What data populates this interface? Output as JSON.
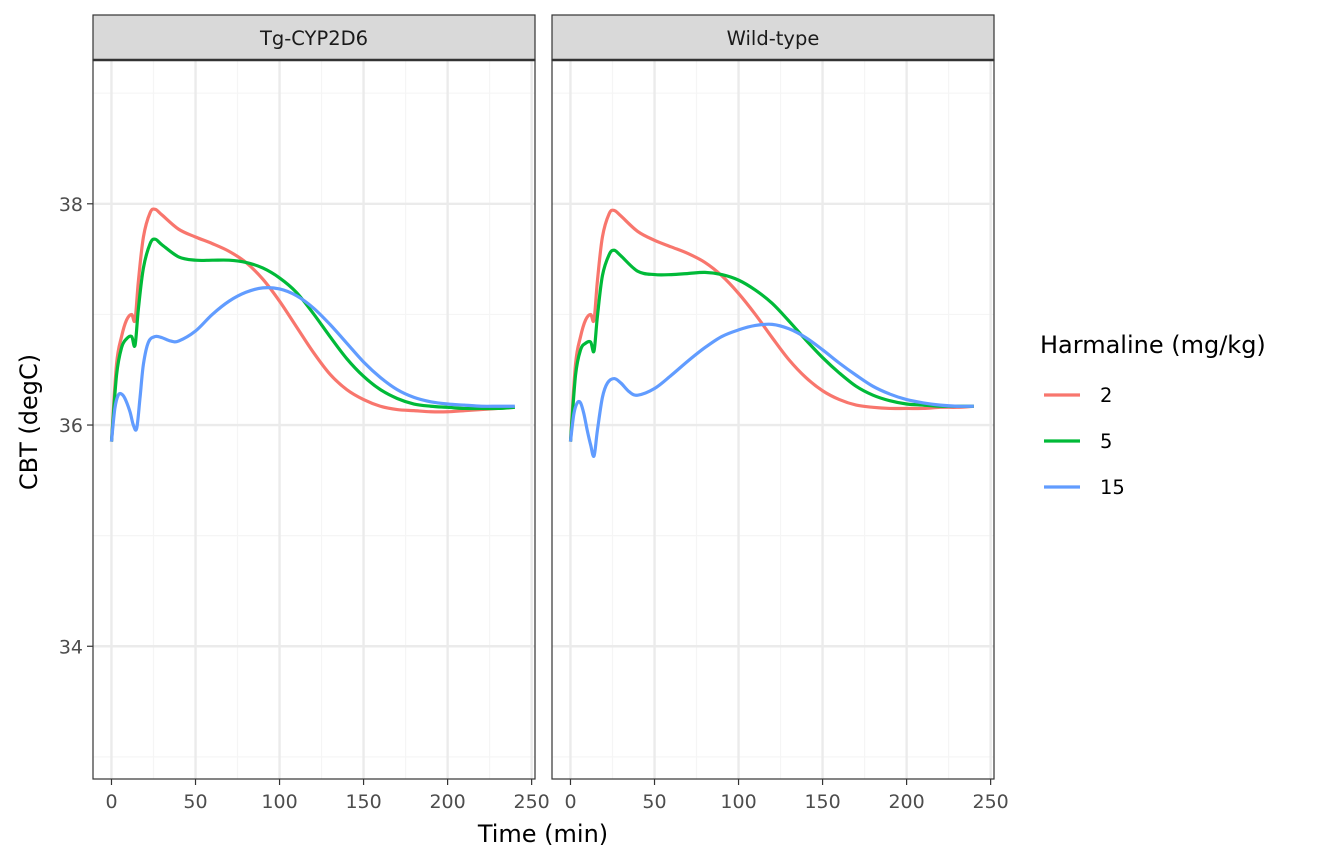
{
  "chart_data": {
    "type": "line",
    "xlabel": "Time (min)",
    "ylabel": "CBT (degC)",
    "xlim": [
      -11,
      252
    ],
    "ylim": [
      32.8,
      39.3
    ],
    "x_ticks": [
      0,
      50,
      100,
      150,
      200,
      250
    ],
    "y_ticks": [
      34,
      36,
      38
    ],
    "grid": true,
    "legend": {
      "title": "Harmaline (mg/kg)",
      "placement": "right",
      "entries": [
        {
          "label": "2",
          "color": "#F8766D"
        },
        {
          "label": "5",
          "color": "#00BA38"
        },
        {
          "label": "15",
          "color": "#619CFF"
        }
      ]
    },
    "facets": [
      {
        "label": "Tg-CYP2D6",
        "series": [
          {
            "name": "2",
            "color": "#F8766D",
            "points": [
              [
                0,
                35.85
              ],
              [
                3,
                36.55
              ],
              [
                6,
                36.8
              ],
              [
                9,
                36.95
              ],
              [
                12,
                37.0
              ],
              [
                14,
                36.95
              ],
              [
                16,
                37.3
              ],
              [
                19,
                37.7
              ],
              [
                23,
                37.92
              ],
              [
                26,
                37.95
              ],
              [
                30,
                37.9
              ],
              [
                40,
                37.77
              ],
              [
                50,
                37.7
              ],
              [
                60,
                37.64
              ],
              [
                70,
                37.57
              ],
              [
                80,
                37.47
              ],
              [
                90,
                37.32
              ],
              [
                100,
                37.12
              ],
              [
                110,
                36.89
              ],
              [
                120,
                36.66
              ],
              [
                130,
                36.46
              ],
              [
                140,
                36.32
              ],
              [
                150,
                36.23
              ],
              [
                160,
                36.17
              ],
              [
                170,
                36.14
              ],
              [
                180,
                36.13
              ],
              [
                190,
                36.12
              ],
              [
                200,
                36.12
              ],
              [
                210,
                36.13
              ],
              [
                220,
                36.14
              ],
              [
                230,
                36.15
              ],
              [
                240,
                36.16
              ]
            ]
          },
          {
            "name": "5",
            "color": "#00BA38",
            "points": [
              [
                0,
                35.85
              ],
              [
                3,
                36.45
              ],
              [
                6,
                36.7
              ],
              [
                9,
                36.78
              ],
              [
                12,
                36.8
              ],
              [
                14,
                36.72
              ],
              [
                16,
                37.05
              ],
              [
                19,
                37.42
              ],
              [
                23,
                37.64
              ],
              [
                26,
                37.68
              ],
              [
                30,
                37.63
              ],
              [
                40,
                37.52
              ],
              [
                50,
                37.49
              ],
              [
                60,
                37.49
              ],
              [
                70,
                37.49
              ],
              [
                80,
                37.47
              ],
              [
                90,
                37.42
              ],
              [
                100,
                37.33
              ],
              [
                110,
                37.2
              ],
              [
                120,
                37.01
              ],
              [
                130,
                36.8
              ],
              [
                140,
                36.6
              ],
              [
                150,
                36.44
              ],
              [
                160,
                36.32
              ],
              [
                170,
                36.24
              ],
              [
                180,
                36.19
              ],
              [
                190,
                36.17
              ],
              [
                200,
                36.16
              ],
              [
                210,
                36.15
              ],
              [
                220,
                36.15
              ],
              [
                230,
                36.15
              ],
              [
                240,
                36.16
              ]
            ]
          },
          {
            "name": "15",
            "color": "#619CFF",
            "points": [
              [
                0,
                35.85
              ],
              [
                2,
                36.15
              ],
              [
                4,
                36.27
              ],
              [
                6,
                36.28
              ],
              [
                8,
                36.24
              ],
              [
                11,
                36.12
              ],
              [
                13,
                36.0
              ],
              [
                15,
                35.97
              ],
              [
                17,
                36.25
              ],
              [
                19,
                36.55
              ],
              [
                22,
                36.75
              ],
              [
                26,
                36.8
              ],
              [
                30,
                36.79
              ],
              [
                35,
                36.76
              ],
              [
                40,
                36.76
              ],
              [
                50,
                36.85
              ],
              [
                60,
                37.0
              ],
              [
                70,
                37.12
              ],
              [
                80,
                37.2
              ],
              [
                90,
                37.24
              ],
              [
                100,
                37.23
              ],
              [
                110,
                37.17
              ],
              [
                120,
                37.06
              ],
              [
                130,
                36.91
              ],
              [
                140,
                36.74
              ],
              [
                150,
                36.57
              ],
              [
                160,
                36.43
              ],
              [
                170,
                36.32
              ],
              [
                180,
                36.25
              ],
              [
                190,
                36.21
              ],
              [
                200,
                36.19
              ],
              [
                210,
                36.18
              ],
              [
                220,
                36.17
              ],
              [
                230,
                36.17
              ],
              [
                240,
                36.17
              ]
            ]
          }
        ]
      },
      {
        "label": "Wild-type",
        "series": [
          {
            "name": "2",
            "color": "#F8766D",
            "points": [
              [
                0,
                35.85
              ],
              [
                3,
                36.55
              ],
              [
                6,
                36.8
              ],
              [
                9,
                36.95
              ],
              [
                12,
                37.0
              ],
              [
                14,
                36.95
              ],
              [
                16,
                37.3
              ],
              [
                19,
                37.7
              ],
              [
                23,
                37.91
              ],
              [
                26,
                37.94
              ],
              [
                30,
                37.89
              ],
              [
                40,
                37.75
              ],
              [
                50,
                37.67
              ],
              [
                60,
                37.61
              ],
              [
                70,
                37.55
              ],
              [
                80,
                37.47
              ],
              [
                90,
                37.35
              ],
              [
                100,
                37.19
              ],
              [
                110,
                37.0
              ],
              [
                120,
                36.79
              ],
              [
                130,
                36.59
              ],
              [
                140,
                36.43
              ],
              [
                150,
                36.31
              ],
              [
                160,
                36.23
              ],
              [
                170,
                36.18
              ],
              [
                180,
                36.16
              ],
              [
                190,
                36.15
              ],
              [
                200,
                36.15
              ],
              [
                210,
                36.15
              ],
              [
                220,
                36.16
              ],
              [
                230,
                36.16
              ],
              [
                240,
                36.17
              ]
            ]
          },
          {
            "name": "5",
            "color": "#00BA38",
            "points": [
              [
                0,
                35.85
              ],
              [
                3,
                36.45
              ],
              [
                6,
                36.68
              ],
              [
                9,
                36.74
              ],
              [
                12,
                36.75
              ],
              [
                14,
                36.67
              ],
              [
                16,
                36.98
              ],
              [
                19,
                37.35
              ],
              [
                23,
                37.54
              ],
              [
                26,
                37.58
              ],
              [
                30,
                37.53
              ],
              [
                40,
                37.39
              ],
              [
                50,
                37.36
              ],
              [
                60,
                37.36
              ],
              [
                70,
                37.37
              ],
              [
                80,
                37.38
              ],
              [
                90,
                37.36
              ],
              [
                100,
                37.31
              ],
              [
                110,
                37.22
              ],
              [
                120,
                37.1
              ],
              [
                130,
                36.94
              ],
              [
                140,
                36.77
              ],
              [
                150,
                36.61
              ],
              [
                160,
                36.47
              ],
              [
                170,
                36.35
              ],
              [
                180,
                36.27
              ],
              [
                190,
                36.22
              ],
              [
                200,
                36.19
              ],
              [
                210,
                36.18
              ],
              [
                220,
                36.17
              ],
              [
                230,
                36.17
              ],
              [
                240,
                36.17
              ]
            ]
          },
          {
            "name": "15",
            "color": "#619CFF",
            "points": [
              [
                0,
                35.85
              ],
              [
                2,
                36.1
              ],
              [
                4,
                36.2
              ],
              [
                6,
                36.2
              ],
              [
                8,
                36.1
              ],
              [
                10,
                35.95
              ],
              [
                12,
                35.82
              ],
              [
                14,
                35.72
              ],
              [
                16,
                35.95
              ],
              [
                19,
                36.25
              ],
              [
                22,
                36.38
              ],
              [
                26,
                36.42
              ],
              [
                30,
                36.38
              ],
              [
                35,
                36.3
              ],
              [
                40,
                36.27
              ],
              [
                50,
                36.33
              ],
              [
                60,
                36.45
              ],
              [
                70,
                36.58
              ],
              [
                80,
                36.7
              ],
              [
                90,
                36.8
              ],
              [
                100,
                36.86
              ],
              [
                110,
                36.9
              ],
              [
                120,
                36.91
              ],
              [
                130,
                36.87
              ],
              [
                140,
                36.79
              ],
              [
                150,
                36.68
              ],
              [
                160,
                36.56
              ],
              [
                170,
                36.45
              ],
              [
                180,
                36.35
              ],
              [
                190,
                36.28
              ],
              [
                200,
                36.23
              ],
              [
                210,
                36.2
              ],
              [
                220,
                36.18
              ],
              [
                230,
                36.17
              ],
              [
                240,
                36.17
              ]
            ]
          }
        ]
      }
    ]
  },
  "colors": {
    "panel_border": "#333333",
    "strip_fill": "#d9d9d9",
    "grid_major": "#ebebeb",
    "grid_minor": "#f5f5f5"
  }
}
